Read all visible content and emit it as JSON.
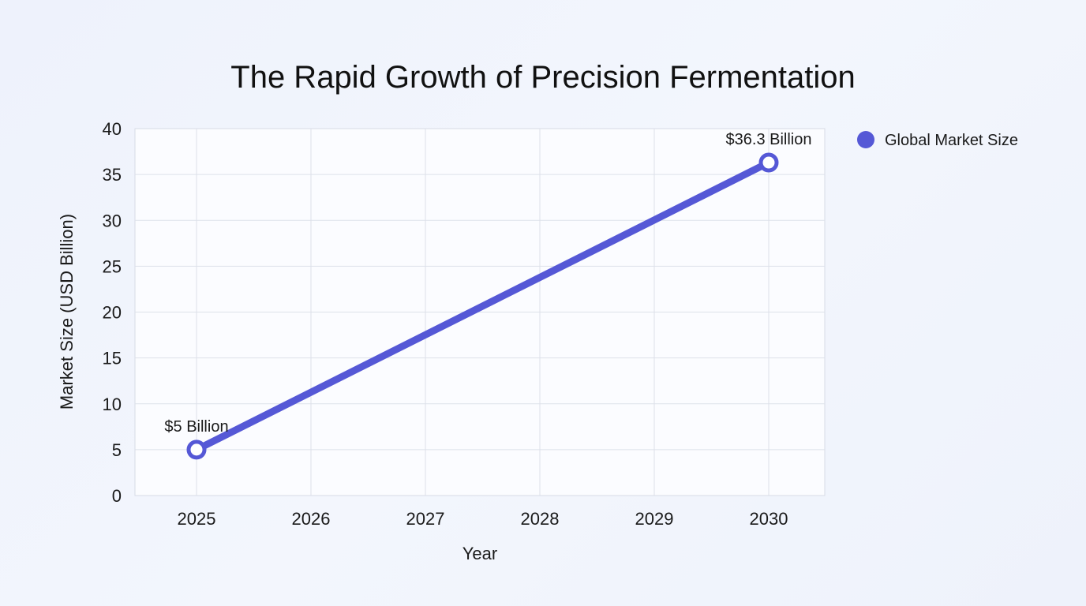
{
  "chart_data": {
    "type": "line",
    "title": "The Rapid Growth of Precision Fermentation",
    "xlabel": "Year",
    "ylabel": "Market Size (USD Billion)",
    "categories": [
      "2025",
      "2026",
      "2027",
      "2028",
      "2029",
      "2030"
    ],
    "ylim": [
      0,
      40
    ],
    "yticks": [
      0,
      5,
      10,
      15,
      20,
      25,
      30,
      35,
      40
    ],
    "grid": true,
    "legend_position": "top-right",
    "series": [
      {
        "name": "Global Market Size",
        "color": "#5558d6",
        "points": [
          {
            "x": 2025,
            "y": 5,
            "label": "$5 Billion"
          },
          {
            "x": 2030,
            "y": 36.3,
            "label": "$36.3 Billion"
          }
        ]
      }
    ]
  }
}
